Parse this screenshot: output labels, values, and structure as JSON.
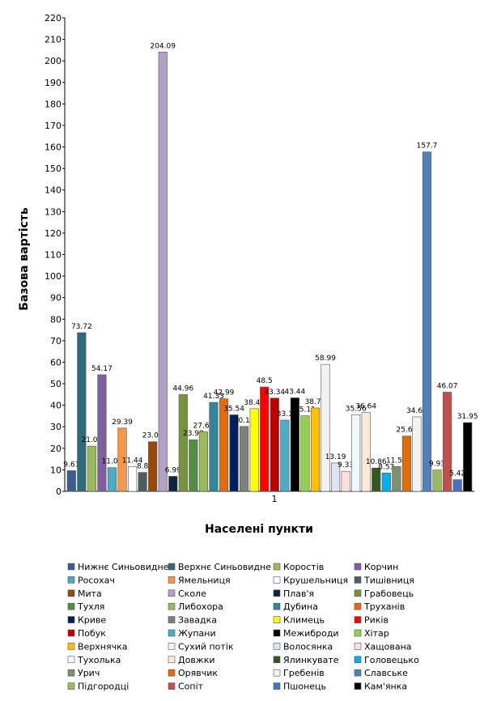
{
  "chart_data": {
    "type": "bar",
    "ylabel": "Базова вартість",
    "xlabel": "Населені пункти",
    "categories": [
      "1"
    ],
    "ylim": [
      0,
      220
    ],
    "yticks": [
      0,
      10,
      20,
      30,
      40,
      50,
      60,
      70,
      80,
      90,
      100,
      110,
      120,
      130,
      140,
      150,
      160,
      170,
      180,
      190,
      200,
      210,
      220
    ],
    "legend": "bottom",
    "series": [
      {
        "name": "Нижнє Синьовидне",
        "color": "#3a5f8f",
        "values": [
          9.61
        ]
      },
      {
        "name": "Верхнє Синьовидне",
        "color": "#2e6b7a",
        "values": [
          73.72
        ]
      },
      {
        "name": "Коростів",
        "color": "#9bbb59",
        "values": [
          21.01
        ]
      },
      {
        "name": "Корчин",
        "color": "#7f5fa0",
        "values": [
          54.17
        ]
      },
      {
        "name": "Росохач",
        "color": "#4bacc6",
        "values": [
          11.03
        ]
      },
      {
        "name": "Ямельниця",
        "color": "#f79646",
        "values": [
          29.39
        ]
      },
      {
        "name": "Крушельниця",
        "color": "#ffffff",
        "values": [
          11.44
        ]
      },
      {
        "name": "Тишівниця",
        "color": "#4d5e63",
        "values": [
          8.8
        ]
      },
      {
        "name": "Мита",
        "color": "#984807",
        "values": [
          23.07
        ]
      },
      {
        "name": "Сколе",
        "color": "#b3a2c7",
        "values": [
          204.09
        ]
      },
      {
        "name": "Плав'я",
        "color": "#0f243e",
        "values": [
          6.99
        ]
      },
      {
        "name": "Грабовець",
        "color": "#77933c",
        "values": [
          44.96
        ]
      },
      {
        "name": "Тухля",
        "color": "#4f8f3f",
        "values": [
          23.98
        ]
      },
      {
        "name": "Либохора",
        "color": "#9bbb59",
        "values": [
          27.64
        ]
      },
      {
        "name": "Дубина",
        "color": "#31859c",
        "values": [
          41.33
        ]
      },
      {
        "name": "Труханів",
        "color": "#e46c0a",
        "values": [
          42.99
        ]
      },
      {
        "name": "Криве",
        "color": "#002060",
        "values": [
          35.54
        ]
      },
      {
        "name": "Завадка",
        "color": "#7f7f7f",
        "values": [
          30.15
        ]
      },
      {
        "name": "Климець",
        "color": "#ffff00",
        "values": [
          38.42
        ]
      },
      {
        "name": "Риків",
        "color": "#ff0000",
        "values": [
          48.5
        ]
      },
      {
        "name": "Побук",
        "color": "#c00000",
        "values": [
          43.34
        ]
      },
      {
        "name": "Жупани",
        "color": "#4bacc6",
        "values": [
          33.1
        ]
      },
      {
        "name": "Межиброди",
        "color": "#000000",
        "values": [
          43.44
        ]
      },
      {
        "name": "Хітар",
        "color": "#92d050",
        "values": [
          35.11
        ]
      },
      {
        "name": "Верхнячка",
        "color": "#ffc000",
        "values": [
          38.75
        ]
      },
      {
        "name": "Сухий потік",
        "color": "#f2f2f2",
        "values": [
          58.99
        ]
      },
      {
        "name": "Волосянка",
        "color": "#dce6f2",
        "values": [
          13.19
        ]
      },
      {
        "name": "Хащована",
        "color": "#ffdede",
        "values": [
          9.33
        ]
      },
      {
        "name": "Тухолька",
        "color": "#eefaff",
        "values": [
          35.56
        ]
      },
      {
        "name": "Довжки",
        "color": "#fde9d9",
        "values": [
          36.64
        ]
      },
      {
        "name": "Ялинкувате",
        "color": "#375623",
        "values": [
          10.86
        ]
      },
      {
        "name": "Головецько",
        "color": "#00b0f0",
        "values": [
          8.53
        ]
      },
      {
        "name": "Урич",
        "color": "#7f8f6f",
        "values": [
          11.54
        ]
      },
      {
        "name": "Орявчик",
        "color": "#e26b0a",
        "values": [
          25.68
        ]
      },
      {
        "name": "Гребенів",
        "color": "#f2f2f2",
        "values": [
          34.61
        ]
      },
      {
        "name": "Славське",
        "color": "#4f81bd",
        "values": [
          157.7
        ]
      },
      {
        "name": "Підгородці",
        "color": "#9bbb59",
        "values": [
          9.93
        ]
      },
      {
        "name": "Сопіт",
        "color": "#c0504d",
        "values": [
          46.07
        ]
      },
      {
        "name": "Пшонець",
        "color": "#4472c4",
        "values": [
          5.42
        ]
      },
      {
        "name": "Кам'янка",
        "color": "#000000",
        "values": [
          31.95
        ]
      }
    ]
  }
}
